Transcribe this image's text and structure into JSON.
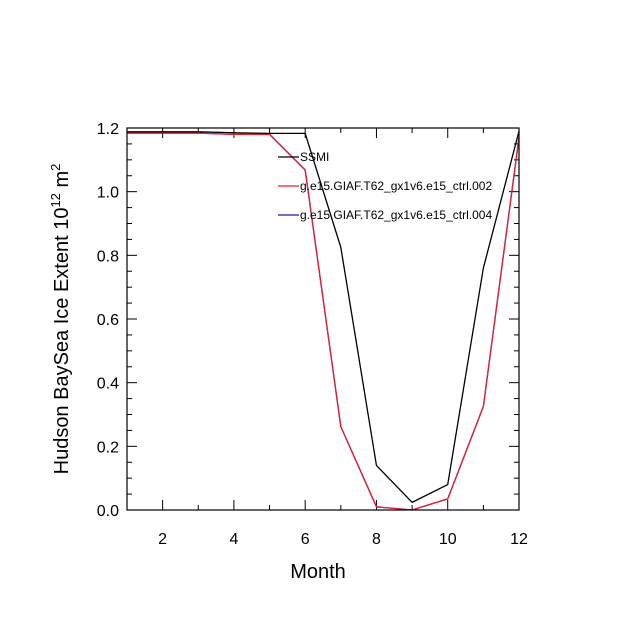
{
  "chart_data": {
    "type": "line",
    "title": "",
    "xlabel": "Month",
    "ylabel_main": "Hudson BaySea Ice Extent 10",
    "ylabel_exp": "12",
    "ylabel_unit": " m",
    "ylabel_unit_exp": "2",
    "xlim": [
      1,
      12
    ],
    "ylim": [
      0,
      1.2
    ],
    "xticks": [
      2,
      4,
      6,
      8,
      10,
      12
    ],
    "yticks": [
      0.0,
      0.2,
      0.4,
      0.6,
      0.8,
      1.0,
      1.2
    ],
    "ytick_labels": [
      "0.0",
      "0.2",
      "0.4",
      "0.6",
      "0.8",
      "1.0",
      "1.2"
    ],
    "legend_position": "upper-right",
    "x": [
      1,
      2,
      3,
      4,
      5,
      6,
      7,
      8,
      9,
      10,
      11,
      12
    ],
    "series": [
      {
        "name": "SSMI",
        "color": "#000000",
        "values": [
          1.188,
          1.188,
          1.188,
          1.185,
          1.183,
          1.183,
          0.825,
          0.14,
          0.024,
          0.08,
          0.76,
          1.19
        ]
      },
      {
        "name": "g.e15.GIAF.T62_gx1v6.e15_ctrl.002",
        "color": "#e8202a",
        "values": [
          1.184,
          1.184,
          1.184,
          1.18,
          1.18,
          1.068,
          0.262,
          0.01,
          0.0,
          0.035,
          0.325,
          1.17
        ]
      },
      {
        "name": "g.e15.GIAF.T62_gx1v6.e15_ctrl.004",
        "color": "#1a1aa6",
        "values": [
          1.184,
          1.184,
          1.184,
          1.18,
          1.18,
          1.068,
          0.262,
          0.01,
          0.0,
          0.035,
          0.325,
          1.17
        ]
      }
    ]
  }
}
